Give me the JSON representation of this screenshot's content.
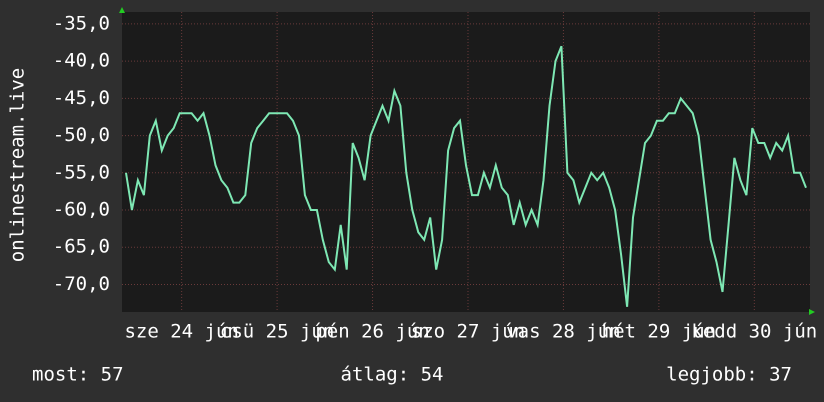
{
  "chart_data": {
    "type": "line",
    "y_label": "onlinestream.live",
    "x": [
      -14,
      -12.5,
      -11,
      -9.5,
      -8,
      -6.5,
      -5,
      -3.5,
      -2,
      -0.5,
      1,
      2.5,
      4,
      5.5,
      7,
      8.5,
      10,
      11.5,
      13,
      14.5,
      16,
      17.5,
      19,
      20.5,
      22,
      23.5,
      25,
      26.5,
      28,
      29.5,
      31,
      32.5,
      34,
      35.5,
      37,
      38.5,
      40,
      41.5,
      43,
      44.5,
      46,
      47.5,
      49,
      50.5,
      52,
      53.5,
      55,
      56.5,
      58,
      59.5,
      61,
      62.5,
      64,
      65.5,
      67,
      68.5,
      70,
      71.5,
      73,
      74.5,
      76,
      77.5,
      79,
      80.5,
      82,
      83.5,
      85,
      86.5,
      88,
      89.5,
      91,
      92.5,
      94,
      95.5,
      97,
      98.5,
      100,
      101.5,
      103,
      104.5,
      106,
      107.5,
      109,
      110.5,
      112,
      113.5,
      115,
      116.5,
      118,
      119.5,
      121,
      122.5,
      124,
      125.5,
      127,
      128.5,
      130,
      131.5,
      133,
      134.5,
      136,
      137.5,
      139,
      140.5,
      142,
      143.5,
      145,
      146.5,
      148,
      149.5,
      151,
      152.5,
      154,
      155.5,
      157
    ],
    "series": [
      {
        "name": "onlinestream.live",
        "color": "#7ee8b4",
        "values": [
          -55,
          -60,
          -56,
          -58,
          -50,
          -48,
          -52,
          -50,
          -49,
          -47,
          -47,
          -47,
          -48,
          -47,
          -50,
          -54,
          -56,
          -57,
          -59,
          -59,
          -58,
          -51,
          -49,
          -48,
          -47,
          -47,
          -47,
          -47,
          -48,
          -50,
          -58,
          -60,
          -60,
          -64,
          -67,
          -68,
          -62,
          -68,
          -51,
          -53,
          -56,
          -50,
          -48,
          -46,
          -48,
          -44,
          -46,
          -55,
          -60,
          -63,
          -64,
          -61,
          -68,
          -64,
          -52,
          -49,
          -48,
          -54,
          -58,
          -58,
          -55,
          -57,
          -54,
          -57,
          -58,
          -62,
          -59,
          -62,
          -60,
          -62,
          -56,
          -46,
          -40,
          -38,
          -55,
          -56,
          -59,
          -57,
          -55,
          -56,
          -55,
          -57,
          -60,
          -66,
          -73,
          -61,
          -56,
          -51,
          -50,
          -48,
          -48,
          -47,
          -47,
          -45,
          -46,
          -47,
          -50,
          -57,
          -64,
          -67,
          -71,
          -62,
          -53,
          -56,
          -58,
          -49,
          -51,
          -51,
          -53,
          -51,
          -52,
          -50,
          -55,
          -55,
          -57
        ]
      }
    ],
    "xlim": [
      -15,
      158
    ],
    "xticks": [
      {
        "value": 0,
        "label": "sze 24 jún"
      },
      {
        "value": 24,
        "label": "csü 25 jún"
      },
      {
        "value": 48,
        "label": "pén 26 jún"
      },
      {
        "value": 72,
        "label": "szo 27 jún"
      },
      {
        "value": 96,
        "label": "vas 28 jún"
      },
      {
        "value": 120,
        "label": "hét 29 jún"
      },
      {
        "value": 144,
        "label": "kedd 30 jún"
      }
    ],
    "ylim": [
      -73.7,
      -33.4
    ],
    "yticks": [
      {
        "value": -35,
        "label": "-35,0"
      },
      {
        "value": -40,
        "label": "-40,0"
      },
      {
        "value": -45,
        "label": "-45,0"
      },
      {
        "value": -50,
        "label": "-50,0"
      },
      {
        "value": -55,
        "label": "-55,0"
      },
      {
        "value": -60,
        "label": "-60,0"
      },
      {
        "value": -65,
        "label": "-65,0"
      },
      {
        "value": -70,
        "label": "-70,0"
      }
    ],
    "grid": true
  },
  "footer": {
    "current": "most: 57",
    "average": "átlag: 54",
    "best": "legjobb: 37"
  }
}
